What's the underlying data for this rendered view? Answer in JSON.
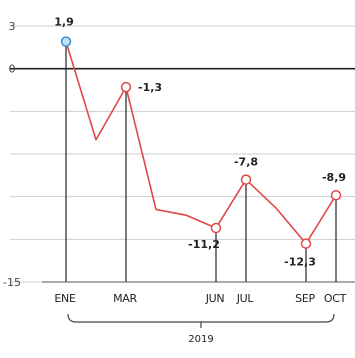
{
  "chart_data": {
    "type": "line",
    "x_labels": [
      "ENE",
      "MAR",
      "JUN",
      "JUL",
      "SEP",
      "OCT"
    ],
    "year_label": "2019",
    "ylim": [
      -15,
      3
    ],
    "y_ticks": [
      3,
      0,
      -15
    ],
    "grid": true,
    "series": [
      {
        "color": "#e04848",
        "points": [
          {
            "month": 1,
            "value": 1.9,
            "label": "1,9"
          },
          {
            "month": 2,
            "value": -5.0
          },
          {
            "month": 3,
            "value": -1.3,
            "label": "-1,3"
          },
          {
            "month": 4,
            "value": -9.9
          },
          {
            "month": 5,
            "value": -10.3
          },
          {
            "month": 6,
            "value": -11.2,
            "label": "-11,2"
          },
          {
            "month": 7,
            "value": -7.8,
            "label": "-7,8"
          },
          {
            "month": 8,
            "value": -9.8
          },
          {
            "month": 9,
            "value": -12.3,
            "label": "-12,3"
          },
          {
            "month": 10,
            "value": -8.9,
            "label": "-8,9"
          }
        ]
      }
    ],
    "labeled_months": [
      1,
      3,
      6,
      7,
      9,
      10
    ]
  }
}
